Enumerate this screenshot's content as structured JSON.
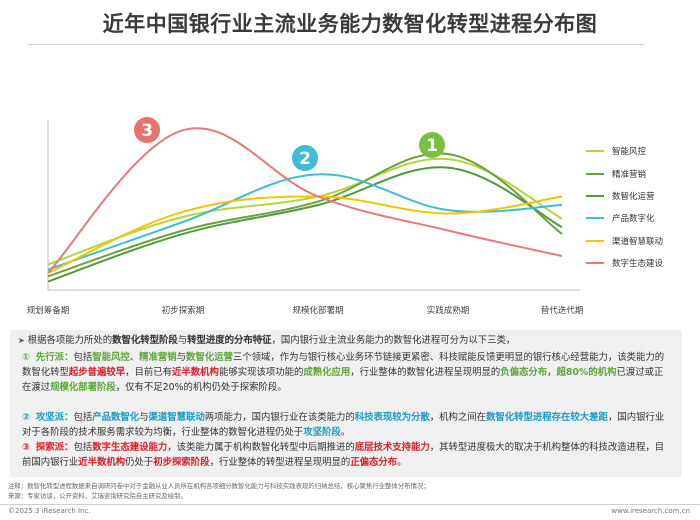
{
  "title": "近年中国银行业主流业务能力数智化转型进程分布图",
  "chart_data": {
    "type": "line",
    "categories": [
      "规划筹备期",
      "初步探索期",
      "规模化部署期",
      "实践成熟期",
      "替代迭代期"
    ],
    "grid": false,
    "legend_position": "right",
    "series": [
      {
        "name": "智能风控",
        "color": "#b7d43f",
        "values": [
          0.15,
          0.43,
          0.55,
          0.77,
          0.42
        ]
      },
      {
        "name": "精准营销",
        "color": "#6aa33c",
        "values": [
          0.08,
          0.35,
          0.52,
          0.8,
          0.33
        ]
      },
      {
        "name": "数智化运营",
        "color": "#4f9a3a",
        "values": [
          0.05,
          0.33,
          0.5,
          0.72,
          0.37
        ]
      },
      {
        "name": "产品数字化",
        "color": "#3fbcd8",
        "values": [
          0.12,
          0.4,
          0.68,
          0.47,
          0.5
        ]
      },
      {
        "name": "渠道智慧联动",
        "color": "#f5c500",
        "values": [
          0.1,
          0.46,
          0.55,
          0.45,
          0.55
        ]
      },
      {
        "name": "数字生态建设",
        "color": "#e8787a",
        "values": [
          0.1,
          0.94,
          0.55,
          0.35,
          0.2
        ]
      }
    ],
    "annotations": [
      {
        "label": "1",
        "color": "#7ac143"
      },
      {
        "label": "2",
        "color": "#3fbcd8"
      },
      {
        "label": "3",
        "color": "#e9726c"
      }
    ]
  },
  "paragraphs": {
    "intro": {
      "pre": "根据各项能力所处的",
      "b1": "数智化转型阶段",
      "mid": "与",
      "b2": "转型进度的分布特征",
      "post": "，国内银行业主流业务能力的数智化进程可分为以下三类，"
    },
    "p1": {
      "num": "①",
      "head": "先行派：",
      "t1": "包括",
      "k1": "智能风控",
      "t2": "、",
      "k2": "精准营销",
      "t3": "与",
      "k3": "数智化运营",
      "t4": "三个领域，作为与银行核心业务环节链接更紧密、科技赋能反馈更明显的银行核心经营能力，该类能力的数智化转型",
      "k4": "起步普遍较早",
      "t5": "，目前已有",
      "k5": "近半数机构",
      "t6": "能够实现该项功能的",
      "k6": "成熟化应用",
      "t7": "，行业整体的数智化进程呈现明显的",
      "k7": "负偏态分布",
      "t8": "，",
      "k8": "超80%的机构",
      "t9": "已渡过或正在渡过",
      "k9": "规模化部署阶段",
      "t10": "，仅有不足20%的机构仍处于探索阶段。"
    },
    "p2": {
      "num": "②",
      "head": "攻坚派：",
      "t1": "包括",
      "k1": "产品数智化",
      "t2": "与",
      "k2": "渠道智慧联动",
      "t3": "两项能力，国内银行业在该类能力的",
      "k3": "科技表现较为分散",
      "t4": "，机构之间在",
      "k4": "数智化转型进程存在较大差距",
      "t5": "，国内银行业对于各阶段的技术服务需求较为均衡，行业整体的数智化进程仍处于",
      "k5": "攻坚阶段",
      "t6": "。"
    },
    "p3": {
      "num": "③",
      "head": "探索派：",
      "t1": "包括",
      "k1": "数字生态建设能力",
      "t2": "，该类能力属于机构数智化转型中后期推进的",
      "k2": "底层技术支持能力",
      "t3": "，其转型进度极大的取决于机构整体的科技改造进程，目前国内银行业",
      "k3": "近半数机构",
      "t4": "仍处于",
      "k4": "初步探索阶段",
      "t5": "，行业整体的转型进程呈现明显的",
      "k5": "正偏态分布",
      "t6": "。"
    }
  },
  "notes": {
    "note": "注释：数智化转型进程数据来自调研问卷中对于金融从业人员所在机构各项细分数智化能力与科技实践表现的归纳总结，核心聚焦行业整体分布情况；",
    "source": "来源：专家访谈，公开资料，艾瑞咨询研究院自主研究及绘制。"
  },
  "footer": {
    "left": "©2025.3 iResearch Inc.",
    "right": "www.iresearch.com.cn"
  }
}
